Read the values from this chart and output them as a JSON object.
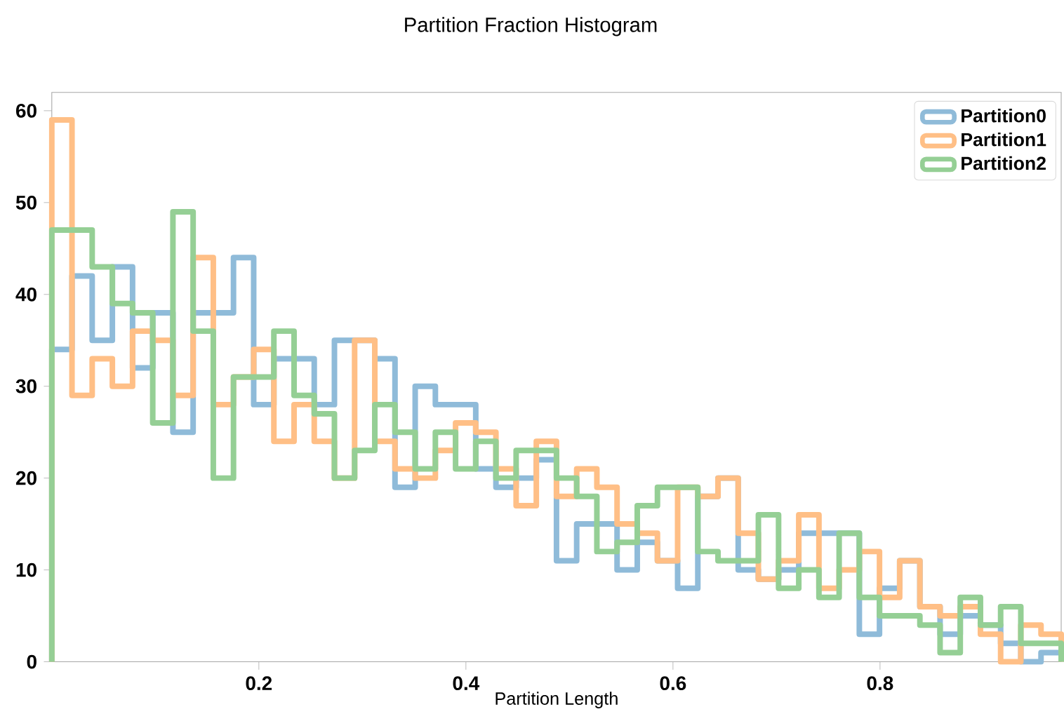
{
  "chart_data": {
    "type": "histogram",
    "title": "Partition Fraction Histogram",
    "xlabel": "Partition Length",
    "bins": [
      0,
      0.0195,
      0.039,
      0.0585,
      0.078,
      0.0975,
      0.117,
      0.1365,
      0.156,
      0.1755,
      0.195,
      0.2145,
      0.234,
      0.2535,
      0.273,
      0.2925,
      0.312,
      0.3315,
      0.351,
      0.3705,
      0.39,
      0.4095,
      0.429,
      0.4485,
      0.468,
      0.4875,
      0.507,
      0.5265,
      0.546,
      0.5655,
      0.585,
      0.6045,
      0.624,
      0.6435,
      0.663,
      0.6825,
      0.702,
      0.7215,
      0.741,
      0.7605,
      0.78,
      0.7995,
      0.819,
      0.8385,
      0.858,
      0.8775,
      0.897,
      0.9165,
      0.936,
      0.9555,
      0.975
    ],
    "series": [
      {
        "name": "Partition0",
        "color": "#8fbbd9",
        "values": [
          34,
          42,
          35,
          43,
          32,
          38,
          25,
          38,
          38,
          44,
          28,
          33,
          33,
          28,
          35,
          35,
          33,
          19,
          30,
          28,
          28,
          21,
          19,
          20,
          22,
          11,
          15,
          15,
          10,
          13,
          11,
          8,
          18,
          20,
          10,
          9,
          10,
          14,
          14,
          14,
          3,
          8,
          11,
          6,
          3,
          5,
          4,
          2,
          0,
          1
        ]
      },
      {
        "name": "Partition1",
        "color": "#ffbf86",
        "values": [
          59,
          29,
          33,
          30,
          36,
          35,
          29,
          44,
          28,
          31,
          34,
          24,
          28,
          24,
          20,
          35,
          24,
          21,
          20,
          23,
          26,
          25,
          21,
          17,
          24,
          18,
          21,
          19,
          15,
          14,
          11,
          19,
          18,
          20,
          14,
          9,
          11,
          16,
          8,
          10,
          12,
          7,
          11,
          6,
          5,
          6,
          3,
          0,
          4,
          3
        ]
      },
      {
        "name": "Partition2",
        "color": "#95cf95",
        "values": [
          47,
          47,
          43,
          39,
          38,
          26,
          49,
          36,
          20,
          31,
          31,
          36,
          29,
          27,
          20,
          23,
          28,
          25,
          21,
          25,
          21,
          24,
          20,
          23,
          23,
          20,
          18,
          12,
          13,
          17,
          19,
          19,
          12,
          11,
          11,
          16,
          8,
          10,
          7,
          14,
          7,
          5,
          5,
          4,
          1,
          7,
          4,
          6,
          2,
          2
        ]
      }
    ],
    "xlim": [
      0,
      0.975
    ],
    "ylim": [
      0,
      62
    ],
    "xticks": [
      0.2,
      0.4,
      0.6,
      0.8
    ],
    "yticks": [
      0,
      10,
      20,
      30,
      40,
      50,
      60
    ],
    "grid": false,
    "legend": "top right"
  }
}
